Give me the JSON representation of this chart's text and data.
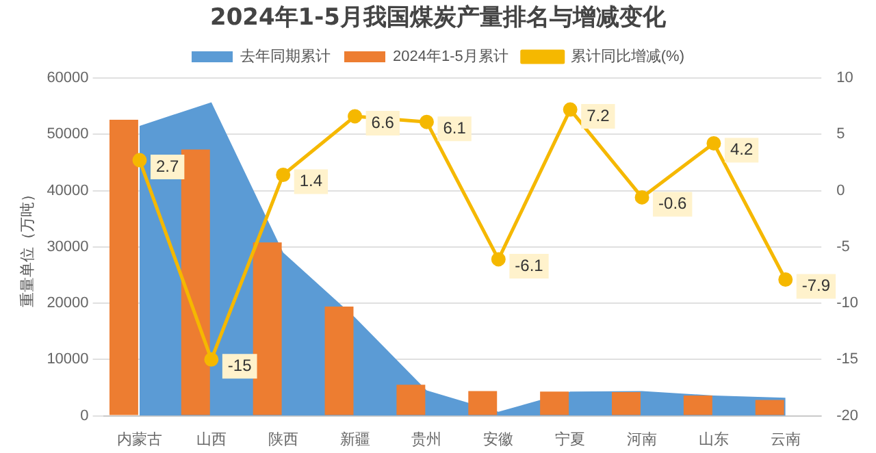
{
  "chart_data": {
    "type": "bar",
    "title": "2024年1-5月我国煤炭产量排名与增减变化",
    "ylabel": "重量单位（万吨）",
    "categories": [
      "内蒙古",
      "山西",
      "陕西",
      "新疆",
      "贵州",
      "安徽",
      "宁夏",
      "河南",
      "山东",
      "云南"
    ],
    "series": [
      {
        "name": "去年同期累计",
        "type": "area",
        "color": "#5b9bd5",
        "values": [
          51500,
          55700,
          29000,
          17500,
          4500,
          700,
          4300,
          4400,
          3600,
          3200
        ]
      },
      {
        "name": "2024年1-5月累计",
        "color": "#ed7d31",
        "values": [
          52600,
          47300,
          30800,
          19400,
          5500,
          4400,
          4300,
          4200,
          3600,
          2800
        ]
      },
      {
        "name": "累计同比增减(%)",
        "type": "line",
        "axis": "y2",
        "color": "#f5b800",
        "marker": "circle",
        "data_labels": true,
        "values": [
          2.7,
          -15,
          1.4,
          6.6,
          6.1,
          -6.1,
          7.2,
          -0.6,
          4.2,
          -7.9
        ]
      }
    ],
    "ylim": [
      0,
      60000
    ],
    "yticks": [
      0,
      10000,
      20000,
      30000,
      40000,
      50000,
      60000
    ],
    "y2lim": [
      -20,
      10
    ],
    "y2ticks": [
      -20,
      -15,
      -10,
      -5,
      0,
      5,
      10
    ],
    "grid": "y",
    "legend": "top"
  }
}
